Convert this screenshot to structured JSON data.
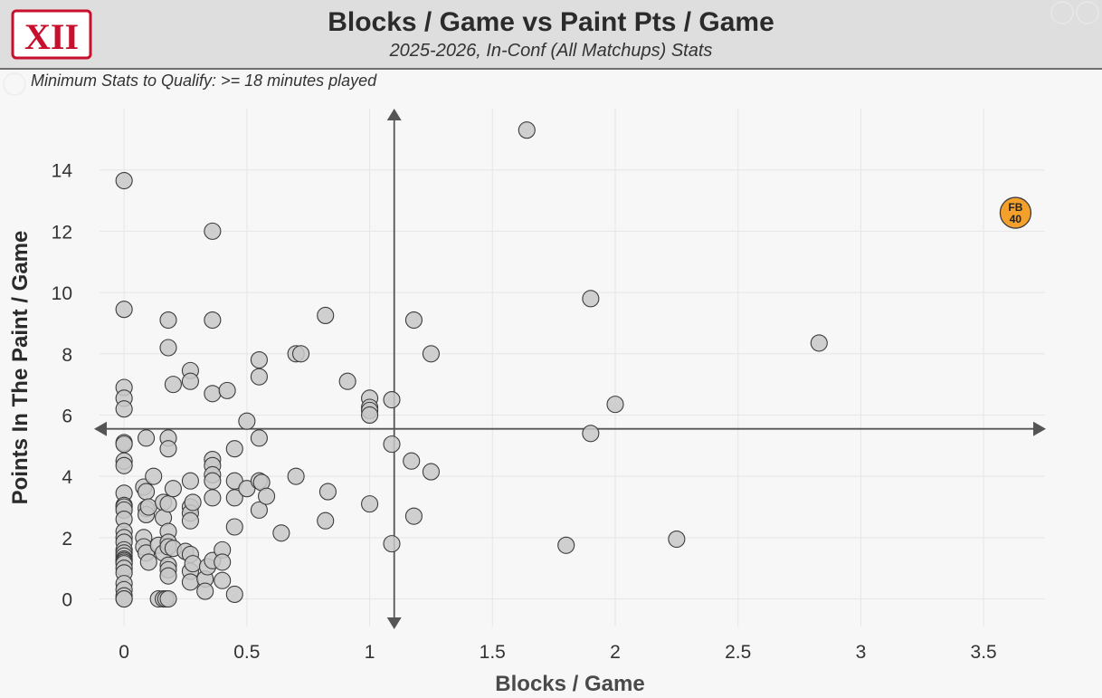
{
  "header": {
    "title": "Blocks / Game vs Paint Pts / Game",
    "subtitle": "2025-2026, In-Conf (All Matchups) Stats",
    "logo_text": "XII"
  },
  "note": "Minimum Stats to Qualify: >= 18 minutes played",
  "chart_data": {
    "type": "scatter",
    "title": "Blocks / Game vs Paint Pts / Game",
    "subtitle": "2025-2026, In-Conf (All Matchups) Stats",
    "xlabel": "Blocks / Game",
    "ylabel": "Points In The Paint / Game",
    "xlim": [
      -0.1,
      3.75
    ],
    "ylim": [
      -0.9,
      16.0
    ],
    "xticks": [
      0,
      0.5,
      1,
      1.5,
      2,
      2.5,
      3,
      3.5
    ],
    "xtick_labels": [
      "0",
      "0.5",
      "1",
      "1.5",
      "2",
      "2.5",
      "3",
      "3.5"
    ],
    "yticks": [
      0,
      2,
      4,
      6,
      8,
      10,
      12,
      14
    ],
    "ytick_labels": [
      "0",
      "2",
      "4",
      "6",
      "8",
      "10",
      "12",
      "14"
    ],
    "grid": true,
    "reference_lines": {
      "x": 1.1,
      "y": 5.55
    },
    "marker_color": "#c8c8c8",
    "highlight_color": "#f5a02a",
    "highlight": {
      "x": 3.63,
      "y": 12.6,
      "label_top": "FB",
      "label_bottom": "40"
    },
    "points": [
      [
        0,
        13.65
      ],
      [
        0,
        9.45
      ],
      [
        0,
        6.9
      ],
      [
        0,
        6.55
      ],
      [
        0,
        6.2
      ],
      [
        0,
        5.1
      ],
      [
        0,
        5.05
      ],
      [
        0,
        4.5
      ],
      [
        0,
        4.35
      ],
      [
        0,
        3.45
      ],
      [
        0,
        3.05
      ],
      [
        0,
        3.0
      ],
      [
        0,
        2.9
      ],
      [
        0,
        2.6
      ],
      [
        0,
        2.2
      ],
      [
        0,
        2.0
      ],
      [
        0,
        1.85
      ],
      [
        0,
        1.6
      ],
      [
        0,
        1.5
      ],
      [
        0,
        1.4
      ],
      [
        0,
        1.3
      ],
      [
        0,
        1.25
      ],
      [
        0,
        1.2
      ],
      [
        0,
        1.15
      ],
      [
        0,
        1.0
      ],
      [
        0,
        0.85
      ],
      [
        0,
        0.5
      ],
      [
        0,
        0.3
      ],
      [
        0,
        0.1
      ],
      [
        0,
        0.0
      ],
      [
        0,
        0.0
      ],
      [
        0.08,
        3.65
      ],
      [
        0.08,
        2.0
      ],
      [
        0.08,
        1.7
      ],
      [
        0.09,
        5.25
      ],
      [
        0.09,
        3.5
      ],
      [
        0.09,
        2.95
      ],
      [
        0.09,
        2.75
      ],
      [
        0.09,
        1.5
      ],
      [
        0.1,
        3.0
      ],
      [
        0.1,
        1.2
      ],
      [
        0.12,
        4.0
      ],
      [
        0.14,
        1.75
      ],
      [
        0.14,
        0.0
      ],
      [
        0.16,
        3.15
      ],
      [
        0.16,
        2.65
      ],
      [
        0.16,
        1.5
      ],
      [
        0.16,
        0.0
      ],
      [
        0.17,
        0.0
      ],
      [
        0.18,
        9.1
      ],
      [
        0.18,
        8.2
      ],
      [
        0.18,
        5.25
      ],
      [
        0.18,
        4.9
      ],
      [
        0.18,
        3.1
      ],
      [
        0.18,
        2.2
      ],
      [
        0.18,
        1.85
      ],
      [
        0.18,
        1.7
      ],
      [
        0.18,
        1.1
      ],
      [
        0.18,
        0.95
      ],
      [
        0.18,
        0.75
      ],
      [
        0.18,
        0.0
      ],
      [
        0.2,
        7.0
      ],
      [
        0.2,
        3.6
      ],
      [
        0.2,
        1.65
      ],
      [
        0.25,
        1.55
      ],
      [
        0.27,
        7.45
      ],
      [
        0.27,
        7.1
      ],
      [
        0.27,
        3.85
      ],
      [
        0.27,
        3.0
      ],
      [
        0.27,
        2.8
      ],
      [
        0.27,
        2.55
      ],
      [
        0.27,
        1.45
      ],
      [
        0.27,
        0.9
      ],
      [
        0.27,
        0.55
      ],
      [
        0.28,
        3.15
      ],
      [
        0.28,
        1.15
      ],
      [
        0.33,
        0.65
      ],
      [
        0.33,
        0.25
      ],
      [
        0.34,
        1.05
      ],
      [
        0.36,
        12.0
      ],
      [
        0.36,
        9.1
      ],
      [
        0.36,
        6.7
      ],
      [
        0.36,
        4.55
      ],
      [
        0.36,
        4.35
      ],
      [
        0.36,
        4.05
      ],
      [
        0.36,
        3.85
      ],
      [
        0.36,
        3.3
      ],
      [
        0.36,
        1.25
      ],
      [
        0.4,
        1.6
      ],
      [
        0.4,
        1.2
      ],
      [
        0.4,
        0.6
      ],
      [
        0.42,
        6.8
      ],
      [
        0.45,
        4.9
      ],
      [
        0.45,
        3.85
      ],
      [
        0.45,
        3.3
      ],
      [
        0.45,
        2.35
      ],
      [
        0.45,
        0.15
      ],
      [
        0.5,
        5.8
      ],
      [
        0.5,
        3.6
      ],
      [
        0.55,
        7.8
      ],
      [
        0.55,
        7.25
      ],
      [
        0.55,
        5.25
      ],
      [
        0.55,
        3.85
      ],
      [
        0.55,
        2.9
      ],
      [
        0.56,
        3.8
      ],
      [
        0.58,
        3.35
      ],
      [
        0.64,
        2.15
      ],
      [
        0.7,
        8.0
      ],
      [
        0.7,
        4.0
      ],
      [
        0.72,
        8.0
      ],
      [
        0.82,
        9.25
      ],
      [
        0.82,
        2.55
      ],
      [
        0.83,
        3.5
      ],
      [
        0.91,
        7.1
      ],
      [
        1.0,
        6.55
      ],
      [
        1.0,
        6.25
      ],
      [
        1.0,
        6.15
      ],
      [
        1.0,
        6.0
      ],
      [
        1.0,
        3.1
      ],
      [
        1.09,
        6.5
      ],
      [
        1.09,
        5.05
      ],
      [
        1.09,
        1.8
      ],
      [
        1.17,
        4.5
      ],
      [
        1.18,
        9.1
      ],
      [
        1.18,
        2.7
      ],
      [
        1.25,
        8.0
      ],
      [
        1.25,
        4.15
      ],
      [
        1.64,
        15.3
      ],
      [
        1.8,
        1.75
      ],
      [
        1.9,
        9.8
      ],
      [
        1.9,
        5.4
      ],
      [
        2.0,
        6.35
      ],
      [
        2.25,
        1.95
      ],
      [
        2.83,
        8.35
      ]
    ]
  }
}
